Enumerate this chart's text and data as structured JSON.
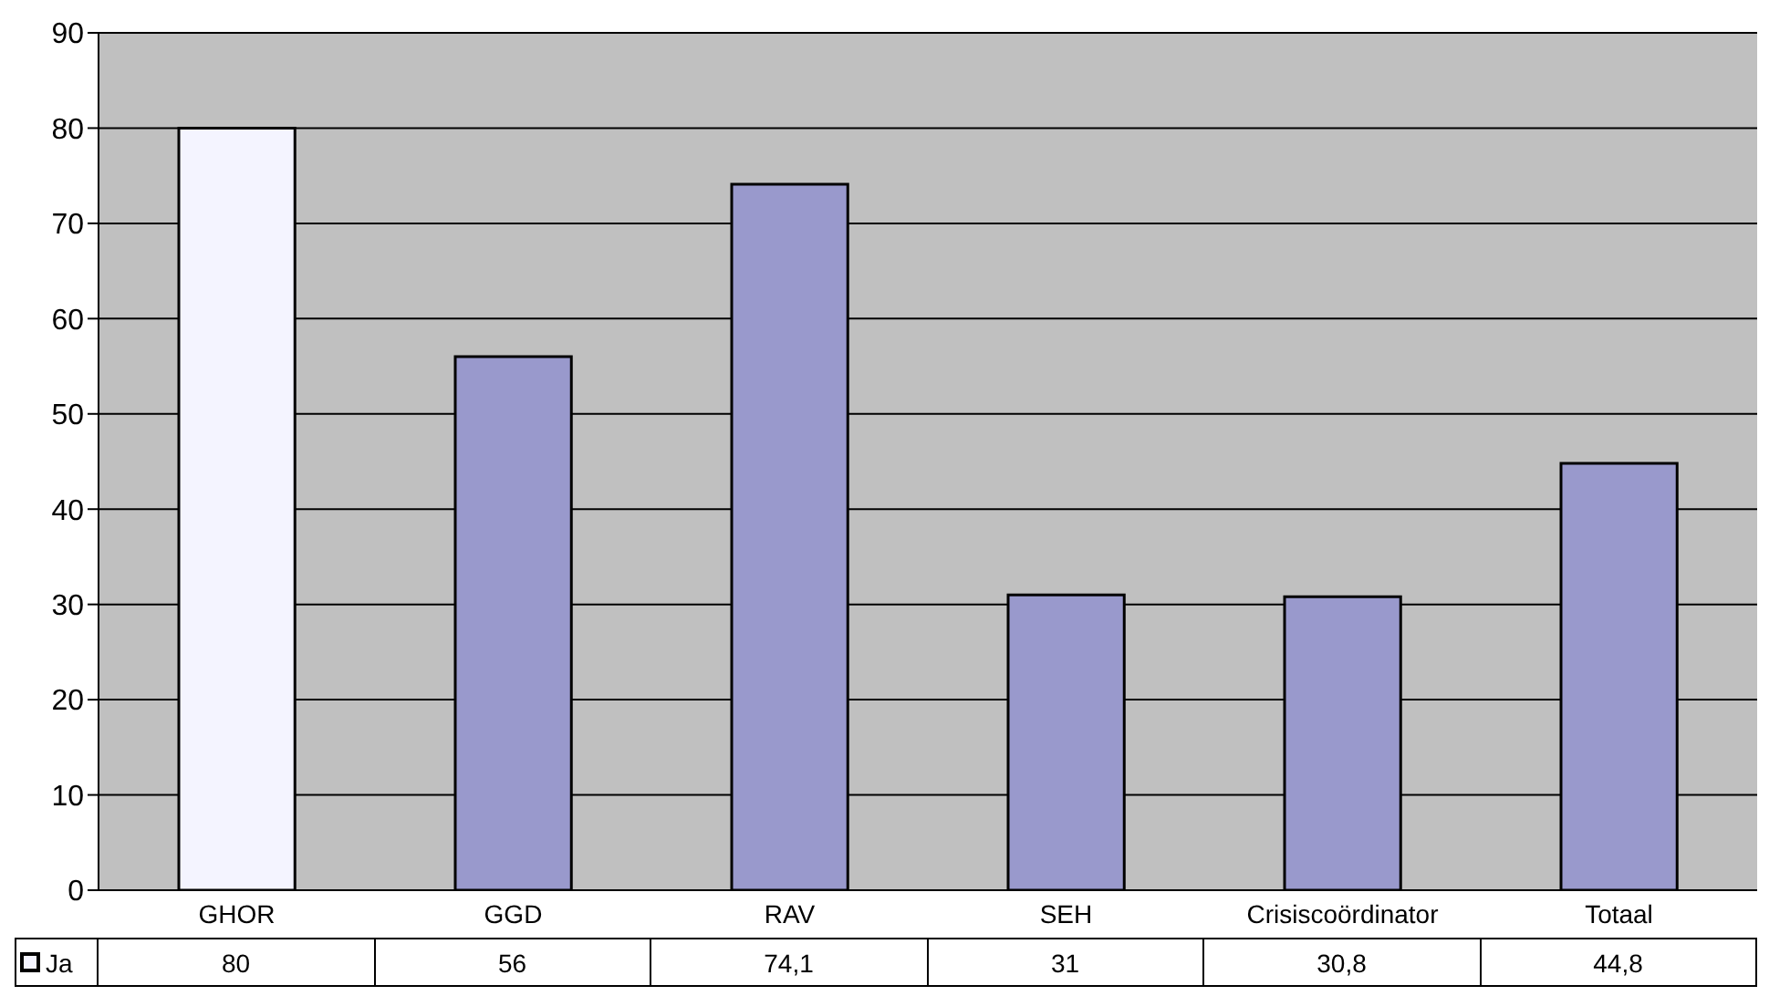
{
  "chart_data": {
    "type": "bar",
    "categories": [
      "GHOR",
      "GGD",
      "RAV",
      "SEH",
      "Crisiscoördinator",
      "Totaal"
    ],
    "series": [
      {
        "name": "Ja",
        "colors": [
          "#f4f4ff",
          "#9999cc",
          "#9999cc",
          "#9999cc",
          "#9999cc",
          "#9999cc"
        ],
        "values": [
          80,
          56,
          74.1,
          31,
          30.8,
          44.8
        ],
        "value_labels": [
          "80",
          "56",
          "74,1",
          "31",
          "30,8",
          "44,8"
        ]
      }
    ],
    "ylim": [
      0,
      90
    ],
    "yticks": [
      0,
      10,
      20,
      30,
      40,
      50,
      60,
      70,
      80,
      90
    ],
    "grid": "y",
    "legend": "bottom left"
  }
}
